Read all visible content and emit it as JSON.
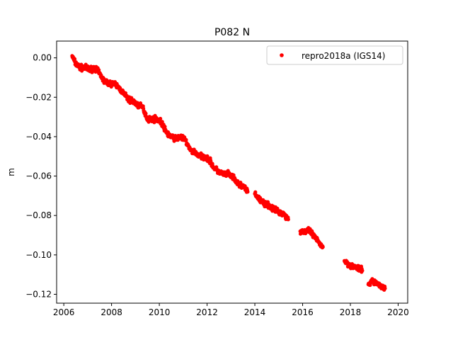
{
  "chart_data": {
    "type": "scatter",
    "title": "P082 N",
    "xlabel": "",
    "ylabel": "m",
    "xlim": [
      2005.7,
      2020.4
    ],
    "ylim": [
      -0.1245,
      0.0085
    ],
    "xticks": [
      2006,
      2008,
      2010,
      2012,
      2014,
      2016,
      2018,
      2020
    ],
    "xtick_labels": [
      "2006",
      "2008",
      "2010",
      "2012",
      "2014",
      "2016",
      "2018",
      "2020"
    ],
    "yticks": [
      0.0,
      -0.02,
      -0.04,
      -0.06,
      -0.08,
      -0.1,
      -0.12
    ],
    "ytick_labels": [
      "0.00",
      "−0.02",
      "−0.04",
      "−0.06",
      "−0.08",
      "−0.10",
      "−0.12"
    ],
    "grid": false,
    "legend_position": "top-right",
    "series": [
      {
        "name": "repro2018a (IGS14)",
        "color": "#ff0000",
        "marker": "dot",
        "segments": [
          {
            "x": [
              2006.35,
              2006.5,
              2006.7,
              2006.9,
              2007.1,
              2007.3,
              2007.5,
              2007.7,
              2007.9,
              2008.1,
              2008.3,
              2008.5,
              2008.7,
              2008.9,
              2009.1,
              2009.3,
              2009.5,
              2009.7,
              2009.9,
              2010.1,
              2010.3,
              2010.5,
              2010.7,
              2010.9,
              2011.1,
              2011.3,
              2011.5,
              2011.7,
              2011.9,
              2012.1,
              2012.3,
              2012.5,
              2012.7,
              2012.9,
              2013.1,
              2013.3,
              2013.5,
              2013.7
            ],
            "y": [
              0.001,
              -0.003,
              -0.005,
              -0.005,
              -0.006,
              -0.005,
              -0.008,
              -0.012,
              -0.013,
              -0.013,
              -0.015,
              -0.018,
              -0.021,
              -0.022,
              -0.024,
              -0.025,
              -0.031,
              -0.031,
              -0.031,
              -0.033,
              -0.038,
              -0.04,
              -0.041,
              -0.04,
              -0.042,
              -0.047,
              -0.048,
              -0.05,
              -0.05,
              -0.052,
              -0.056,
              -0.058,
              -0.059,
              -0.059,
              -0.061,
              -0.064,
              -0.065,
              -0.068
            ]
          },
          {
            "x": [
              2014.0,
              2014.2,
              2014.4,
              2014.6,
              2014.8,
              2015.0,
              2015.2,
              2015.4
            ],
            "y": [
              -0.069,
              -0.072,
              -0.074,
              -0.075,
              -0.077,
              -0.078,
              -0.079,
              -0.082
            ]
          },
          {
            "x": [
              2015.9,
              2016.1,
              2016.3,
              2016.5,
              2016.7,
              2016.85
            ],
            "y": [
              -0.088,
              -0.088,
              -0.088,
              -0.091,
              -0.094,
              -0.096
            ]
          },
          {
            "x": [
              2017.75,
              2017.95,
              2018.15,
              2018.35,
              2018.5
            ],
            "y": [
              -0.103,
              -0.105,
              -0.106,
              -0.107,
              -0.108
            ]
          },
          {
            "x": [
              2018.75,
              2018.95,
              2019.15,
              2019.35,
              2019.45
            ],
            "y": [
              -0.115,
              -0.113,
              -0.115,
              -0.116,
              -0.117
            ]
          }
        ]
      }
    ]
  }
}
